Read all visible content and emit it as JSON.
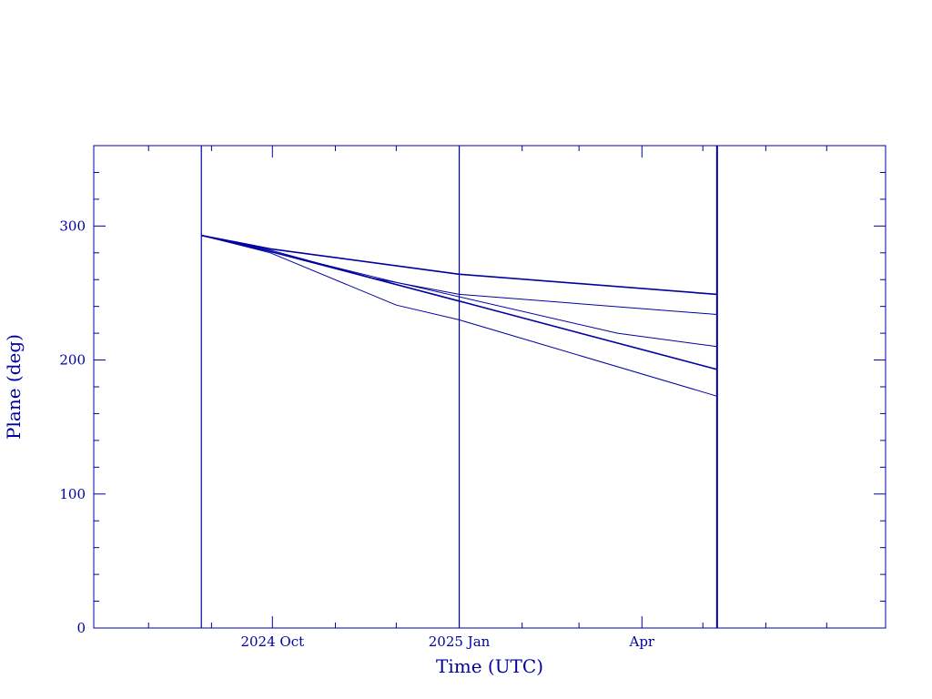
{
  "chart_data": {
    "type": "line",
    "title": "",
    "xlabel": "Time (UTC)",
    "ylabel": "Plane (deg)",
    "ylim": [
      0,
      360
    ],
    "xlim": [
      "2024-07-05",
      "2025-07-30"
    ],
    "y_ticks": [
      0,
      100,
      200,
      300
    ],
    "x_ticks": [
      {
        "date": "2024-10-01",
        "label": "2024 Oct"
      },
      {
        "date": "2025-01-01",
        "label": "2025 Jan"
      },
      {
        "date": "2025-04-01",
        "label": "Apr"
      }
    ],
    "vertical_markers": [
      "2024-08-27",
      "2025-01-01",
      "2025-05-08"
    ],
    "grid": false,
    "series": [
      {
        "x": [
          "2024-08-27",
          "2024-09-30",
          "2025-01-01",
          "2025-05-08"
        ],
        "y": [
          293,
          283,
          264,
          249
        ]
      },
      {
        "x": [
          "2024-08-27",
          "2024-09-30",
          "2024-11-20",
          "2025-01-01",
          "2025-05-08"
        ],
        "y": [
          293,
          282,
          261,
          249,
          234
        ]
      },
      {
        "x": [
          "2024-08-27",
          "2024-09-30",
          "2024-12-01",
          "2025-03-20",
          "2025-05-08"
        ],
        "y": [
          293,
          281,
          258,
          220,
          210
        ]
      },
      {
        "x": [
          "2024-08-27",
          "2024-09-30",
          "2025-01-01",
          "2025-05-08"
        ],
        "y": [
          293,
          281,
          244,
          193
        ]
      },
      {
        "x": [
          "2024-08-27",
          "2024-09-30",
          "2024-12-01",
          "2025-01-01",
          "2025-05-08"
        ],
        "y": [
          293,
          280,
          241,
          230,
          173
        ]
      }
    ]
  },
  "style": {
    "color": "#0000a0"
  }
}
